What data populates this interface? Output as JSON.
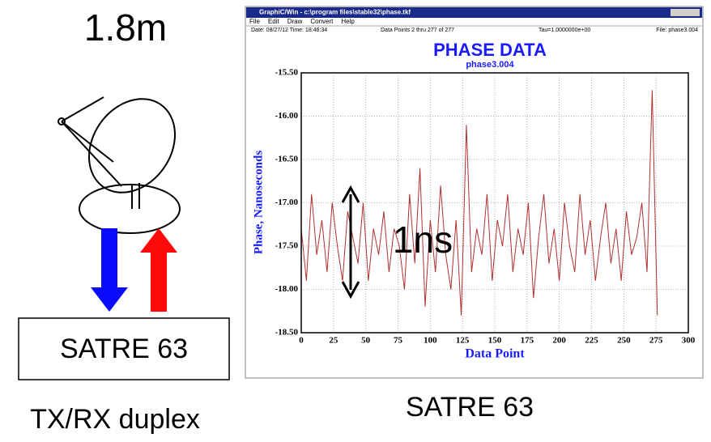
{
  "slide": {
    "dish_size": "1.8m",
    "box_label": "SATRE 63",
    "caption_left": "TX/RX duplex",
    "caption_right": "SATRE 63"
  },
  "window": {
    "title": "GraphiC/Win - c:\\program files\\stable32\\phase.tkf",
    "menu": [
      "File",
      "Edit",
      "Draw",
      "Convert",
      "Help"
    ],
    "info": [
      "Date: 08/27/12  Time: 18:46:34",
      "Data Points 2 thru 277 of 277",
      "Tau=1.0000000e+00",
      "File: phase3.004"
    ]
  },
  "chart_data": {
    "type": "line",
    "title": "PHASE DATA",
    "subtitle": "phase3.004",
    "x_label": "Data Point",
    "y_label": "Phase, Nanoseconds",
    "annotation": "1ns",
    "grid": true,
    "xlim": [
      0,
      300
    ],
    "xticks": [
      0,
      25,
      50,
      75,
      100,
      125,
      150,
      175,
      200,
      225,
      250,
      275,
      300
    ],
    "ylim": [
      -18.5,
      -15.5
    ],
    "yticks": [
      {
        "value": -15.5,
        "label": "-15.50"
      },
      {
        "value": -16,
        "label": "-16.00"
      },
      {
        "value": -16.5,
        "label": "-16.50"
      },
      {
        "value": -17,
        "label": "-17.00"
      },
      {
        "value": -17.5,
        "label": "-17.50"
      },
      {
        "value": -18,
        "label": "-18.00"
      },
      {
        "value": -18.5,
        "label": "-18.50"
      }
    ],
    "x": [
      0,
      4,
      8,
      12,
      16,
      20,
      24,
      28,
      32,
      36,
      40,
      44,
      48,
      52,
      56,
      60,
      64,
      68,
      72,
      76,
      80,
      84,
      88,
      92,
      96,
      100,
      104,
      108,
      112,
      116,
      120,
      124,
      128,
      132,
      136,
      140,
      144,
      148,
      152,
      156,
      160,
      164,
      168,
      172,
      176,
      180,
      184,
      188,
      192,
      196,
      200,
      204,
      208,
      212,
      216,
      220,
      224,
      228,
      232,
      236,
      240,
      244,
      248,
      252,
      256,
      260,
      264,
      268,
      272,
      276
    ],
    "series": [
      {
        "color": "#b03030",
        "values": [
          -17.3,
          -17.9,
          -16.9,
          -17.6,
          -17.2,
          -17.8,
          -17.0,
          -17.5,
          -17.9,
          -17.1,
          -17.4,
          -17.7,
          -17.0,
          -17.9,
          -17.3,
          -17.6,
          -17.1,
          -17.8,
          -17.3,
          -17.5,
          -18.0,
          -16.9,
          -17.7,
          -16.6,
          -18.2,
          -17.2,
          -17.8,
          -16.8,
          -17.6,
          -18.0,
          -17.2,
          -18.3,
          -16.1,
          -17.8,
          -17.3,
          -17.6,
          -16.9,
          -17.9,
          -17.2,
          -17.5,
          -16.9,
          -17.8,
          -17.3,
          -17.6,
          -17.0,
          -18.1,
          -17.4,
          -16.9,
          -17.7,
          -17.3,
          -17.9,
          -17.0,
          -17.5,
          -17.8,
          -16.9,
          -17.6,
          -17.2,
          -17.9,
          -17.4,
          -17.0,
          -17.7,
          -17.3,
          -17.9,
          -17.1,
          -17.6,
          -17.4,
          -17.0,
          -17.8,
          -15.7,
          -18.3
        ]
      }
    ]
  }
}
